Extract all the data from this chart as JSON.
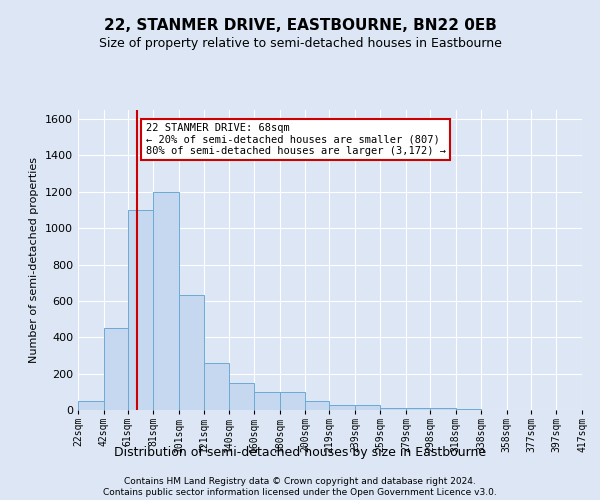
{
  "title": "22, STANMER DRIVE, EASTBOURNE, BN22 0EB",
  "subtitle": "Size of property relative to semi-detached houses in Eastbourne",
  "xlabel": "Distribution of semi-detached houses by size in Eastbourne",
  "ylabel": "Number of semi-detached properties",
  "footnote1": "Contains HM Land Registry data © Crown copyright and database right 2024.",
  "footnote2": "Contains public sector information licensed under the Open Government Licence v3.0.",
  "annotation_line1": "22 STANMER DRIVE: 68sqm",
  "annotation_line2": "← 20% of semi-detached houses are smaller (807)",
  "annotation_line3": "80% of semi-detached houses are larger (3,172) →",
  "property_size": 68,
  "bar_left_edges": [
    22,
    42,
    61,
    81,
    101,
    121,
    140,
    160,
    180,
    200,
    219,
    239,
    259,
    279,
    298,
    318,
    338,
    358,
    377,
    397
  ],
  "bar_heights": [
    50,
    450,
    1100,
    1200,
    630,
    260,
    150,
    100,
    100,
    50,
    30,
    30,
    10,
    10,
    10,
    5,
    2,
    2,
    2,
    2
  ],
  "bar_color": "#c5d8f0",
  "bar_edgecolor": "#6aaad4",
  "vline_x": 68,
  "vline_color": "#cc0000",
  "ylim": [
    0,
    1650
  ],
  "yticks": [
    0,
    200,
    400,
    600,
    800,
    1000,
    1200,
    1400,
    1600
  ],
  "xtick_labels": [
    "22sqm",
    "42sqm",
    "61sqm",
    "81sqm",
    "101sqm",
    "121sqm",
    "140sqm",
    "160sqm",
    "180sqm",
    "200sqm",
    "219sqm",
    "239sqm",
    "259sqm",
    "279sqm",
    "298sqm",
    "318sqm",
    "338sqm",
    "358sqm",
    "377sqm",
    "397sqm",
    "417sqm"
  ],
  "bg_color": "#dce6f5",
  "plot_bg_color": "#dce6f5",
  "grid_color": "#ffffff",
  "annotation_box_facecolor": "#ffffff",
  "annotation_box_edgecolor": "#cc0000",
  "title_fontsize": 11,
  "subtitle_fontsize": 9
}
